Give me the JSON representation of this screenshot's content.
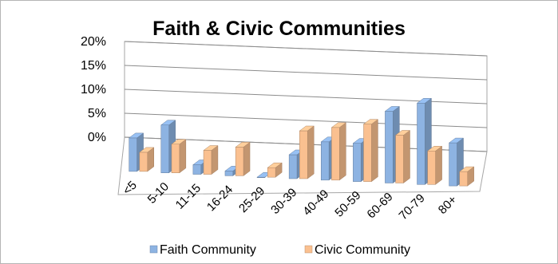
{
  "chart_data": {
    "type": "bar",
    "title": "Faith & Civic Communities",
    "categories": [
      "<5",
      "5-10",
      "11-15",
      "16-24",
      "25-29",
      "30-39",
      "40-49",
      "50-59",
      "60-69",
      "70-79",
      "80+"
    ],
    "series": [
      {
        "name": "Faith Community",
        "color": "#8db3e2",
        "values": [
          7,
          10,
          2,
          1,
          0,
          5,
          8,
          8,
          15,
          17,
          9
        ]
      },
      {
        "name": "Civic Community",
        "color": "#fac090",
        "values": [
          4,
          6,
          5,
          6,
          2,
          10,
          11,
          12,
          10,
          7,
          3
        ]
      }
    ],
    "yticks": [
      "0%",
      "5%",
      "10%",
      "15%",
      "20%"
    ],
    "ylim": [
      0,
      20
    ],
    "grid": true,
    "legend": "bottom",
    "style": "3d-clustered-column"
  }
}
